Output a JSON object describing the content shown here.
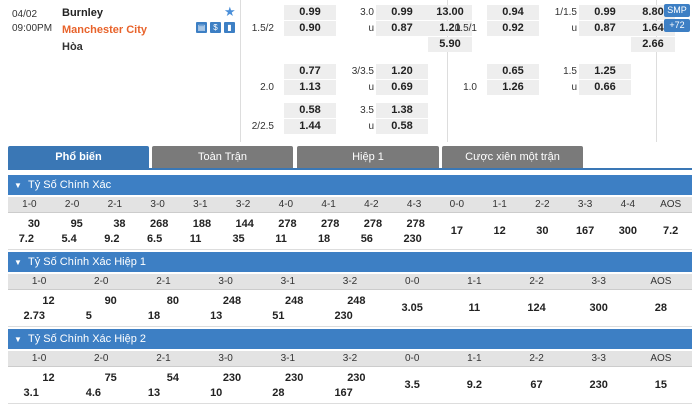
{
  "match": {
    "date": "04/02",
    "time": "09:00PM",
    "home": "Burnley",
    "away": "Manchester City",
    "draw": "Hòa",
    "smp": "SMP",
    "more": "+72"
  },
  "odds": {
    "ft_hdp": [
      {
        "line": "",
        "home": "0.99",
        "ou_line": "3.0",
        "over": "0.99",
        "x12": "13.00"
      },
      {
        "line": "1.5/2",
        "home": "0.90",
        "ou_line": "u",
        "over": "0.87",
        "x12": "1.21"
      },
      {
        "line": "",
        "home": "",
        "ou_line": "",
        "over": "",
        "x12": "5.90"
      }
    ],
    "ft_alt1": [
      {
        "line": "",
        "home": "0.77",
        "ou_line": "3/3.5",
        "over": "1.20"
      },
      {
        "line": "2.0",
        "home": "1.13",
        "ou_line": "u",
        "over": "0.69"
      }
    ],
    "ft_alt2": [
      {
        "line": "",
        "home": "0.58",
        "ou_line": "3.5",
        "over": "1.38"
      },
      {
        "line": "2/2.5",
        "home": "1.44",
        "ou_line": "u",
        "over": "0.58"
      }
    ],
    "h1_hdp": [
      {
        "line": "",
        "home": "0.94",
        "ou_line": "1/1.5",
        "over": "0.99",
        "x12": "8.80"
      },
      {
        "line": "0.5/1",
        "home": "0.92",
        "ou_line": "u",
        "over": "0.87",
        "x12": "1.64"
      },
      {
        "line": "",
        "home": "",
        "ou_line": "",
        "over": "",
        "x12": "2.66"
      }
    ],
    "h1_alt1": [
      {
        "line": "",
        "home": "0.65",
        "ou_line": "1.5",
        "over": "1.25"
      },
      {
        "line": "1.0",
        "home": "1.26",
        "ou_line": "u",
        "over": "0.66"
      }
    ]
  },
  "tabs": [
    "Phổ biến",
    "Toàn Trận",
    "Hiệp 1",
    "Cược xiên một trận"
  ],
  "sections": [
    {
      "title": "Tỷ Số Chính Xác",
      "headers": [
        "1-0",
        "2-0",
        "2-1",
        "3-0",
        "3-1",
        "3-2",
        "4-0",
        "4-1",
        "4-2",
        "4-3",
        "0-0",
        "1-1",
        "2-2",
        "3-3",
        "4-4",
        "AOS"
      ],
      "top": [
        "30",
        "95",
        "38",
        "268",
        "188",
        "144",
        "278",
        "278",
        "278",
        "278",
        "17",
        "12",
        "30",
        "167",
        "300",
        "7.2"
      ],
      "bottom": [
        "7.2",
        "5.4",
        "9.2",
        "6.5",
        "11",
        "35",
        "11",
        "18",
        "56",
        "230",
        "",
        "",
        "",
        "",
        "",
        ""
      ]
    },
    {
      "title": "Tỷ Số Chính Xác Hiệp 1",
      "headers": [
        "1-0",
        "2-0",
        "2-1",
        "3-0",
        "3-1",
        "3-2",
        "0-0",
        "1-1",
        "2-2",
        "3-3",
        "AOS"
      ],
      "top": [
        "12",
        "90",
        "80",
        "248",
        "248",
        "248",
        "3.05",
        "11",
        "124",
        "300",
        "28"
      ],
      "bottom": [
        "2.73",
        "5",
        "18",
        "13",
        "51",
        "230",
        "",
        "",
        "",
        "",
        ""
      ]
    },
    {
      "title": "Tỷ Số Chính Xác Hiệp 2",
      "headers": [
        "1-0",
        "2-0",
        "2-1",
        "3-0",
        "3-1",
        "3-2",
        "0-0",
        "1-1",
        "2-2",
        "3-3",
        "AOS"
      ],
      "top": [
        "12",
        "75",
        "54",
        "230",
        "230",
        "230",
        "3.5",
        "9.2",
        "67",
        "230",
        "15"
      ],
      "bottom": [
        "3.1",
        "4.6",
        "13",
        "10",
        "28",
        "167",
        "",
        "",
        "",
        "",
        ""
      ]
    }
  ]
}
